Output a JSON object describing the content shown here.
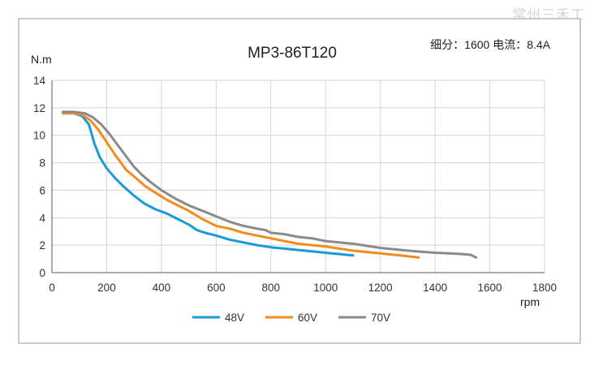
{
  "watermark": "常州三禾工",
  "chart_data": {
    "type": "line",
    "title": "MP3-86T120",
    "info": "细分：1600 电流：8.4A",
    "ylabel": "N.m",
    "xlabel": "rpm",
    "xlim": [
      0,
      1800
    ],
    "ylim": [
      0,
      14
    ],
    "xticks": [
      0,
      200,
      400,
      600,
      800,
      1000,
      1200,
      1400,
      1600,
      1800
    ],
    "yticks": [
      0,
      2,
      4,
      6,
      8,
      10,
      12,
      14
    ],
    "grid": true,
    "legend": "bottom",
    "series": [
      {
        "name": "48V",
        "color": "#1a9ad7",
        "x": [
          40,
          80,
          110,
          135,
          155,
          175,
          200,
          230,
          260,
          300,
          340,
          380,
          420,
          460,
          500,
          530,
          560,
          600,
          650,
          700,
          750,
          800,
          850,
          900,
          950,
          1000,
          1050,
          1100
        ],
        "y": [
          11.6,
          11.6,
          11.4,
          10.8,
          9.4,
          8.4,
          7.6,
          6.9,
          6.3,
          5.6,
          5.0,
          4.6,
          4.3,
          3.9,
          3.5,
          3.1,
          2.9,
          2.7,
          2.4,
          2.2,
          2.0,
          1.85,
          1.75,
          1.65,
          1.55,
          1.45,
          1.35,
          1.25
        ]
      },
      {
        "name": "60V",
        "color": "#f28c1e",
        "x": [
          40,
          80,
          110,
          140,
          170,
          200,
          230,
          270,
          300,
          340,
          380,
          420,
          460,
          500,
          550,
          600,
          650,
          700,
          750,
          800,
          850,
          900,
          950,
          1000,
          1100,
          1200,
          1300,
          1340
        ],
        "y": [
          11.6,
          11.6,
          11.5,
          11.1,
          10.4,
          9.5,
          8.6,
          7.5,
          7.0,
          6.3,
          5.8,
          5.3,
          4.9,
          4.5,
          3.9,
          3.4,
          3.2,
          2.9,
          2.7,
          2.5,
          2.3,
          2.1,
          2.0,
          1.9,
          1.6,
          1.4,
          1.2,
          1.1
        ]
      },
      {
        "name": "70V",
        "color": "#8a8a8a",
        "x": [
          40,
          80,
          120,
          150,
          180,
          210,
          240,
          270,
          300,
          330,
          360,
          400,
          450,
          500,
          550,
          600,
          650,
          700,
          750,
          780,
          800,
          850,
          900,
          950,
          1000,
          1100,
          1200,
          1300,
          1400,
          1450,
          1500,
          1530,
          1550
        ],
        "y": [
          11.7,
          11.7,
          11.6,
          11.3,
          10.8,
          10.1,
          9.3,
          8.5,
          7.7,
          7.1,
          6.6,
          6.0,
          5.4,
          4.9,
          4.5,
          4.1,
          3.7,
          3.4,
          3.2,
          3.1,
          2.9,
          2.8,
          2.6,
          2.5,
          2.3,
          2.1,
          1.8,
          1.6,
          1.45,
          1.4,
          1.35,
          1.3,
          1.1
        ]
      }
    ]
  }
}
